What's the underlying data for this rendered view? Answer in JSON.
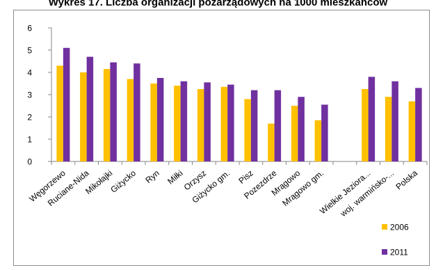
{
  "chart_data": {
    "type": "bar",
    "title": "Wykres 17. Liczba organizacji pozarządowych na 1000 mieszkańców",
    "xlabel": "",
    "ylabel": "",
    "ylim": [
      0,
      6
    ],
    "yticks": [
      0,
      1,
      2,
      3,
      4,
      5,
      6
    ],
    "grid": false,
    "legend_position": "bottom-right",
    "categories": [
      "Węgorzewo",
      "Ruciane-Nida",
      "Mikołajki",
      "Giżycko",
      "Ryn",
      "Miłki",
      "Orzysz",
      "Giżycko gm.",
      "Pisz",
      "Pozezdrze",
      "Mrągowo",
      "Mrągowo gm.",
      "",
      "Wielkie Jeziora...",
      "woj. warmińsko-...",
      "Polska"
    ],
    "series": [
      {
        "name": "2006",
        "color": "#FFC000",
        "values": [
          4.3,
          4.0,
          4.15,
          3.7,
          3.5,
          3.4,
          3.25,
          3.35,
          2.8,
          1.7,
          2.5,
          1.85,
          null,
          3.25,
          2.9,
          2.7
        ]
      },
      {
        "name": "2011",
        "color": "#7030A0",
        "values": [
          5.1,
          4.7,
          4.45,
          4.4,
          3.75,
          3.6,
          3.55,
          3.45,
          3.2,
          3.2,
          2.9,
          2.55,
          null,
          3.8,
          3.6,
          3.3
        ]
      }
    ]
  }
}
